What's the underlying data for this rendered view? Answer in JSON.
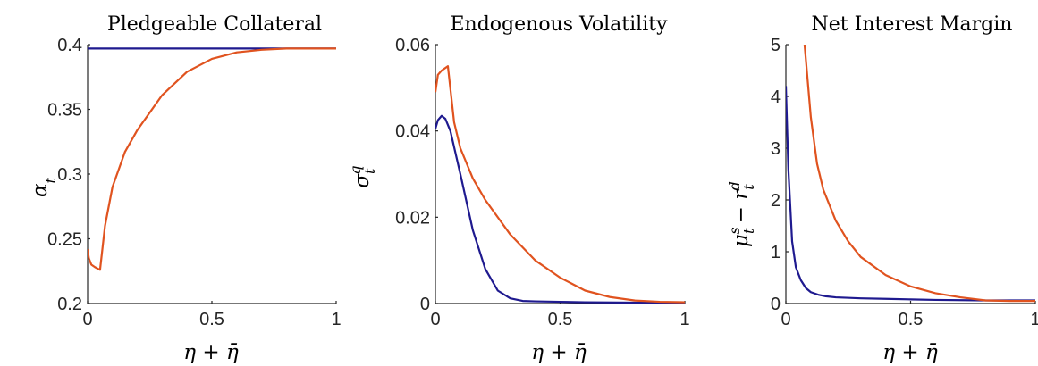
{
  "chart_data": [
    {
      "type": "line",
      "title": "Pledgeable Collateral",
      "xlabel": "η + η̄",
      "ylabel": "α_t",
      "ylabel_main": "α",
      "ylabel_sub": "t",
      "xlim": [
        0,
        1
      ],
      "ylim": [
        0.2,
        0.4
      ],
      "xticks": [
        0,
        0.5,
        1
      ],
      "xtick_labels": [
        "0",
        "0.5",
        "1"
      ],
      "yticks": [
        0.2,
        0.25,
        0.3,
        0.35,
        0.4
      ],
      "ytick_labels": [
        "0.2",
        "0.25",
        "0.3",
        "0.35",
        "0.4"
      ],
      "series": [
        {
          "color": "#1f1a8f",
          "x": [
            0,
            0.2,
            0.4,
            0.6,
            0.8,
            1.0
          ],
          "y": [
            0.397,
            0.397,
            0.397,
            0.397,
            0.397,
            0.397
          ]
        },
        {
          "color": "#e0531f",
          "x": [
            0,
            0.005,
            0.015,
            0.03,
            0.05,
            0.07,
            0.1,
            0.15,
            0.2,
            0.3,
            0.4,
            0.5,
            0.6,
            0.7,
            0.8,
            0.9,
            1.0
          ],
          "y": [
            0.242,
            0.235,
            0.23,
            0.228,
            0.226,
            0.26,
            0.29,
            0.317,
            0.334,
            0.361,
            0.379,
            0.389,
            0.394,
            0.396,
            0.397,
            0.397,
            0.397
          ]
        }
      ]
    },
    {
      "type": "line",
      "title": "Endogenous Volatility",
      "xlabel": "η + η̄",
      "ylabel": "σ_t^q",
      "ylabel_main": "σ",
      "ylabel_sub": "t",
      "ylabel_sup": "q",
      "xlim": [
        0,
        1
      ],
      "ylim": [
        0,
        0.06
      ],
      "xticks": [
        0,
        0.5,
        1
      ],
      "xtick_labels": [
        "0",
        "0.5",
        "1"
      ],
      "yticks": [
        0,
        0.02,
        0.04,
        0.06
      ],
      "ytick_labels": [
        "0",
        "0.02",
        "0.04",
        "0.06"
      ],
      "series": [
        {
          "color": "#1f1a8f",
          "x": [
            0,
            0.01,
            0.025,
            0.04,
            0.06,
            0.08,
            0.1,
            0.15,
            0.2,
            0.25,
            0.3,
            0.35,
            0.4,
            0.5,
            0.6,
            0.8,
            1.0
          ],
          "y": [
            0.0405,
            0.0425,
            0.0435,
            0.0428,
            0.04,
            0.035,
            0.03,
            0.017,
            0.008,
            0.003,
            0.0012,
            0.0006,
            0.0005,
            0.0004,
            0.0003,
            0.0002,
            0.0002
          ]
        },
        {
          "color": "#e0531f",
          "x": [
            0,
            0.01,
            0.025,
            0.05,
            0.075,
            0.1,
            0.15,
            0.2,
            0.3,
            0.4,
            0.5,
            0.6,
            0.7,
            0.8,
            0.9,
            1.0
          ],
          "y": [
            0.049,
            0.053,
            0.054,
            0.055,
            0.042,
            0.036,
            0.029,
            0.024,
            0.016,
            0.01,
            0.006,
            0.003,
            0.0015,
            0.0007,
            0.0004,
            0.0003
          ]
        }
      ]
    },
    {
      "type": "line",
      "title": "Net Interest Margin",
      "xlabel": "η + η̄",
      "ylabel": "μ_t^s − r_t^d",
      "ylabel_main1": "μ",
      "ylabel_sub1": "t",
      "ylabel_sup1": "s",
      "ylabel_mid": "− r",
      "ylabel_sub2": "t",
      "ylabel_sup2": "d",
      "xlim": [
        0,
        1
      ],
      "ylim": [
        0,
        5
      ],
      "xticks": [
        0,
        0.5,
        1
      ],
      "xtick_labels": [
        "0",
        "0.5",
        "1"
      ],
      "yticks": [
        0,
        1,
        2,
        3,
        4,
        5
      ],
      "ytick_labels": [
        "0",
        "1",
        "2",
        "3",
        "4",
        "5"
      ],
      "series": [
        {
          "color": "#1f1a8f",
          "x": [
            0,
            0.01,
            0.025,
            0.04,
            0.06,
            0.08,
            0.1,
            0.13,
            0.16,
            0.2,
            0.3,
            0.4,
            0.5,
            0.6,
            0.8,
            1.0
          ],
          "y": [
            4.2,
            2.6,
            1.2,
            0.7,
            0.45,
            0.3,
            0.22,
            0.17,
            0.14,
            0.12,
            0.1,
            0.09,
            0.08,
            0.07,
            0.06,
            0.06
          ]
        },
        {
          "color": "#e0531f",
          "x": [
            0.075,
            0.1,
            0.125,
            0.15,
            0.2,
            0.25,
            0.3,
            0.4,
            0.5,
            0.6,
            0.7,
            0.8,
            0.9,
            1.0
          ],
          "y": [
            5.0,
            3.6,
            2.7,
            2.2,
            1.6,
            1.2,
            0.9,
            0.55,
            0.33,
            0.2,
            0.12,
            0.06,
            0.05,
            0.05
          ]
        }
      ]
    }
  ]
}
